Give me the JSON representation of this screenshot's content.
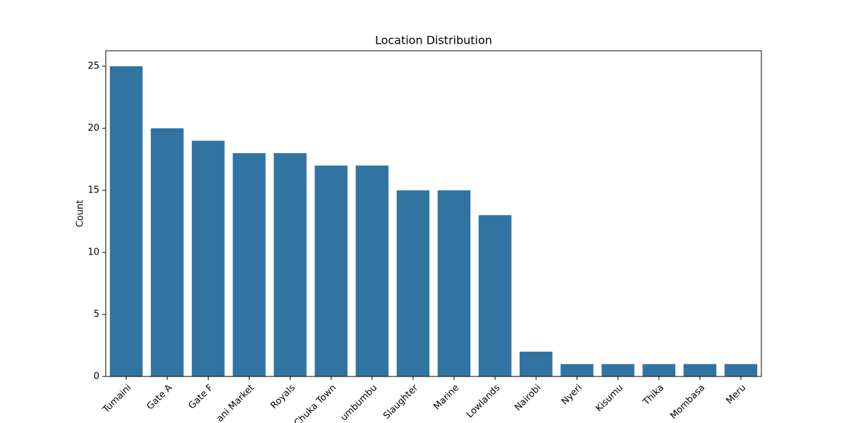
{
  "chart_data": {
    "type": "bar",
    "title": "Location Distribution",
    "y_label": "Count",
    "categories": [
      "Tumaini",
      "Gate A",
      "Gate F",
      "ani Market",
      "Royals",
      "Chuka Town",
      "umbumbu",
      "Slaughter",
      "Marine",
      "Lowlands",
      "Nairobi",
      "Nyeri",
      "Kisumu",
      "Thika",
      "Mombasa",
      "Meru"
    ],
    "values": [
      25,
      20,
      19,
      18,
      18,
      17,
      17,
      15,
      15,
      13,
      2,
      1,
      1,
      1,
      1,
      1
    ],
    "color": "#3274a1",
    "ylim": [
      0,
      26.25
    ],
    "yticks": [
      0,
      5,
      10,
      15,
      20,
      25
    ],
    "grid": false
  }
}
